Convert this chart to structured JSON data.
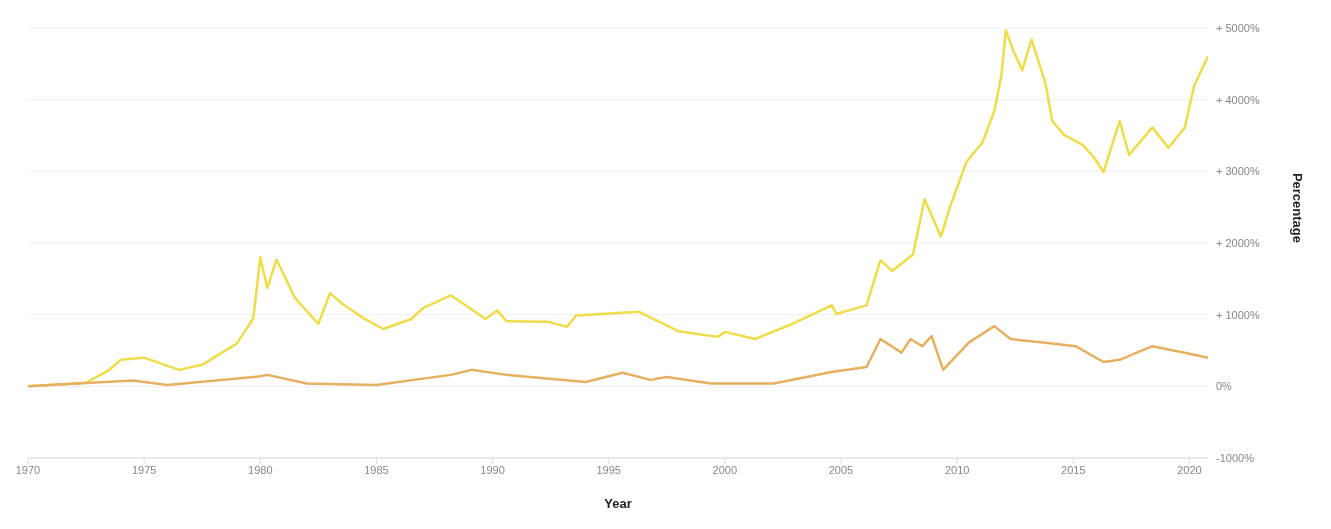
{
  "chart_data": {
    "type": "line",
    "xlabel": "Year",
    "ylabel": "Percentage",
    "xlim": [
      1970,
      2020.8
    ],
    "xticks": [
      1970,
      1975,
      1980,
      1985,
      1990,
      1995,
      2000,
      2005,
      2010,
      2015,
      2020
    ],
    "ylim": [
      -1000,
      5000
    ],
    "yticks": [
      {
        "value": 5000,
        "label": "+ 5000%"
      },
      {
        "value": 4000,
        "label": "+ 4000%"
      },
      {
        "value": 3000,
        "label": "+ 3000%"
      },
      {
        "value": 2000,
        "label": "+ 2000%"
      },
      {
        "value": 1000,
        "label": "+ 1000%"
      },
      {
        "value": 0,
        "label": "0%"
      },
      {
        "value": -1000,
        "label": "-1000%"
      }
    ],
    "grid": "y",
    "marker": "none",
    "line_style": "solid",
    "series": [
      {
        "color": "#eedc4a",
        "x": [
          1970,
          1972.5,
          1973.5,
          1974,
          1975,
          1976.5,
          1977.5,
          1979,
          1979.7,
          1980,
          1980.3,
          1980.7,
          1981.5,
          1982.5,
          1983,
          1983.5,
          1984.5,
          1985.3,
          1986.5,
          1987,
          1988.2,
          1989.7,
          1990.2,
          1990.6,
          1992.4,
          1993.2,
          1993.6,
          1996.3,
          1998,
          1999.7,
          2000,
          2001.3,
          2002.9,
          2004.6,
          2004.8,
          2006.1,
          2006.7,
          2007.2,
          2008.1,
          2008.6,
          2009.3,
          2009.7,
          2010.4,
          2011.1,
          2011.6,
          2011.9,
          2012.1,
          2012.4,
          2012.8,
          2013.2,
          2013.8,
          2014.1,
          2014.6,
          2015.4,
          2015.9,
          2016.3,
          2017,
          2017.4,
          2018.4,
          2019.1,
          2019.8,
          2020.2,
          2020.8
        ],
        "values": [
          0,
          50,
          230,
          370,
          400,
          230,
          300,
          600,
          950,
          1800,
          1370,
          1770,
          1230,
          870,
          1300,
          1160,
          940,
          800,
          940,
          1090,
          1270,
          940,
          1060,
          910,
          900,
          830,
          990,
          1040,
          770,
          690,
          760,
          660,
          870,
          1130,
          1010,
          1130,
          1760,
          1610,
          1840,
          2610,
          2090,
          2510,
          3130,
          3410,
          3840,
          4330,
          4970,
          4700,
          4410,
          4840,
          4230,
          3700,
          3510,
          3370,
          3190,
          2990,
          3700,
          3230,
          3610,
          3330,
          3610,
          4190,
          4610
        ]
      },
      {
        "color": "#e6b060",
        "x": [
          1970,
          1974.5,
          1976,
          1980,
          1980.3,
          1982,
          1985,
          1988.2,
          1989.1,
          1990.6,
          1994,
          1995.6,
          1996.8,
          1997.5,
          1999.4,
          2002.1,
          2004.6,
          2006.1,
          2006.7,
          2007.6,
          2008,
          2008.5,
          2008.9,
          2009.4,
          2010.5,
          2011.6,
          2012.3,
          2013.7,
          2015.1,
          2016.3,
          2017,
          2018.4,
          2019.8,
          2020.8
        ],
        "values": [
          0,
          80,
          20,
          140,
          160,
          40,
          20,
          160,
          230,
          160,
          60,
          190,
          90,
          130,
          40,
          40,
          200,
          270,
          660,
          470,
          660,
          560,
          700,
          230,
          610,
          840,
          660,
          610,
          560,
          340,
          370,
          560,
          470,
          400
        ]
      }
    ]
  }
}
